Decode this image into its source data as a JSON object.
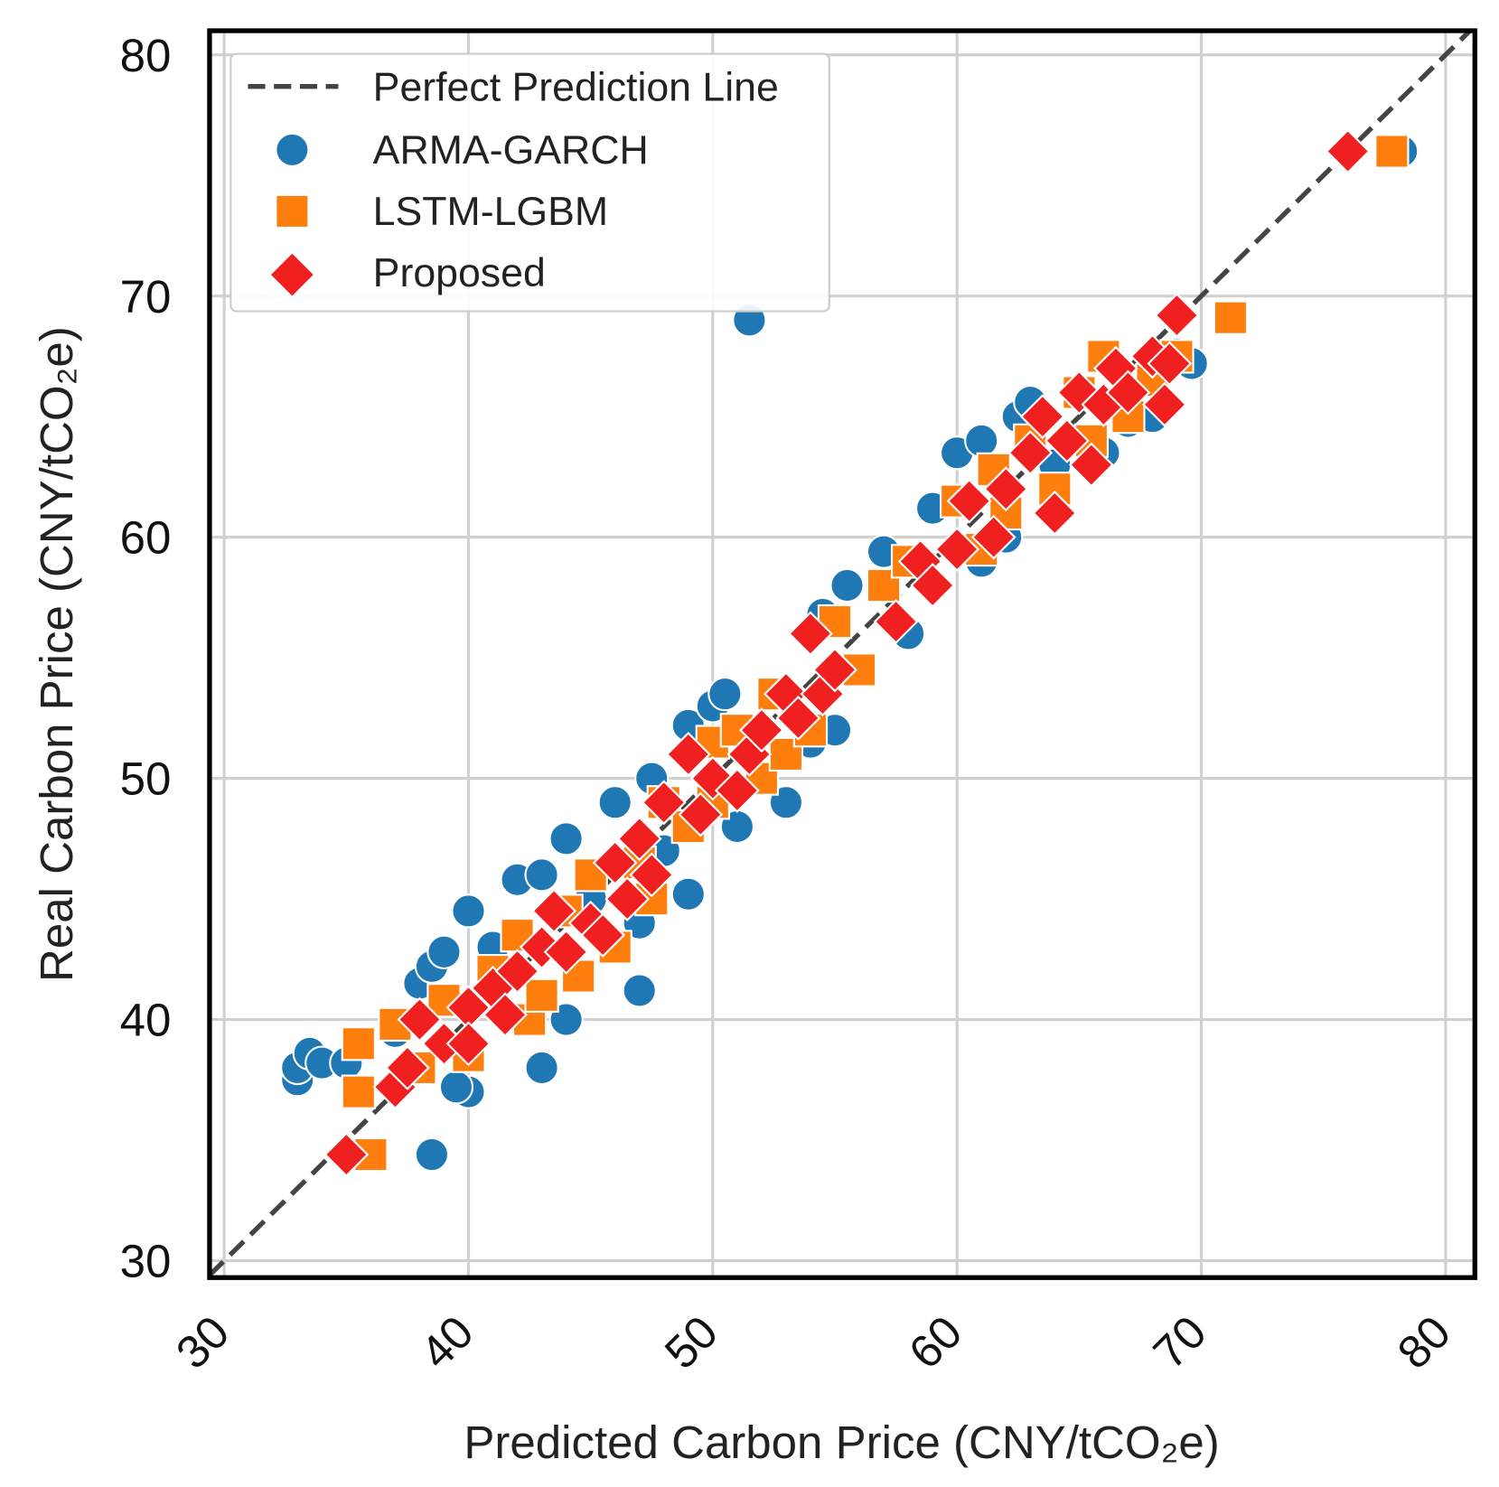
{
  "chart_data": {
    "type": "scatter",
    "xlabel": "Predicted Carbon Price (CNY/tCO₂e)",
    "ylabel": "Real Carbon Price (CNY/tCO₂e)",
    "xlim": [
      29.4,
      81.2
    ],
    "ylim": [
      29.3,
      81
    ],
    "xticks": [
      30,
      40,
      50,
      60,
      70,
      80
    ],
    "yticks": [
      30,
      40,
      50,
      60,
      70,
      80
    ],
    "grid": true,
    "legend_position": "top-left",
    "reference_line": {
      "name": "Perfect Prediction Line",
      "style": "dashed",
      "color": "#444444"
    },
    "series": [
      {
        "name": "ARMA-GARCH",
        "marker": "circle",
        "color": "#1f77b4",
        "points": [
          [
            33,
            37.5
          ],
          [
            33,
            38
          ],
          [
            33.5,
            38.6
          ],
          [
            34,
            38.2
          ],
          [
            35,
            38.2
          ],
          [
            38.5,
            34.4
          ],
          [
            43,
            38
          ],
          [
            47,
            41.2
          ],
          [
            51.5,
            69
          ],
          [
            78.2,
            76
          ],
          [
            37,
            39.5
          ],
          [
            38,
            41.5
          ],
          [
            38.5,
            42.2
          ],
          [
            39,
            42.8
          ],
          [
            40,
            44.5
          ],
          [
            40,
            37
          ],
          [
            39.5,
            37.2
          ],
          [
            41,
            43
          ],
          [
            42,
            45.8
          ],
          [
            43,
            46
          ],
          [
            44,
            47.5
          ],
          [
            44,
            40
          ],
          [
            45,
            45
          ],
          [
            46,
            49
          ],
          [
            47,
            44
          ],
          [
            47.5,
            50
          ],
          [
            48,
            47
          ],
          [
            49,
            45.2
          ],
          [
            49,
            52.2
          ],
          [
            50,
            53
          ],
          [
            50.5,
            53.5
          ],
          [
            51,
            48
          ],
          [
            52,
            52
          ],
          [
            53,
            49
          ],
          [
            54,
            51.5
          ],
          [
            54.5,
            56.8
          ],
          [
            55,
            52
          ],
          [
            55.5,
            58
          ],
          [
            56,
            54.5
          ],
          [
            57,
            59.4
          ],
          [
            58,
            56
          ],
          [
            59,
            61.2
          ],
          [
            60,
            63.5
          ],
          [
            61,
            59
          ],
          [
            61,
            64
          ],
          [
            62,
            60
          ],
          [
            62.5,
            65
          ],
          [
            63,
            65.6
          ],
          [
            64,
            63
          ],
          [
            65,
            66
          ],
          [
            66,
            63.5
          ],
          [
            67,
            64.8
          ],
          [
            68,
            65
          ],
          [
            69,
            67.6
          ],
          [
            69.6,
            67.2
          ]
        ]
      },
      {
        "name": "LSTM-LGBM",
        "marker": "square",
        "color": "#ff7f0e",
        "points": [
          [
            36,
            34.4
          ],
          [
            71.2,
            69.1
          ],
          [
            77.8,
            76
          ],
          [
            35.5,
            39
          ],
          [
            35.5,
            37
          ],
          [
            37,
            39.8
          ],
          [
            38,
            38
          ],
          [
            39,
            40.8
          ],
          [
            40,
            38.5
          ],
          [
            41,
            42
          ],
          [
            42,
            43.5
          ],
          [
            42.5,
            40
          ],
          [
            43,
            41
          ],
          [
            44,
            44.5
          ],
          [
            44.5,
            41.8
          ],
          [
            45,
            46
          ],
          [
            46,
            43
          ],
          [
            47,
            46.5
          ],
          [
            47.5,
            45
          ],
          [
            48,
            49
          ],
          [
            49,
            48
          ],
          [
            50,
            51.5
          ],
          [
            50,
            49
          ],
          [
            51,
            52
          ],
          [
            52,
            50
          ],
          [
            52.5,
            53.5
          ],
          [
            53,
            51
          ],
          [
            54,
            52
          ],
          [
            55,
            56.5
          ],
          [
            56,
            54.5
          ],
          [
            57,
            58
          ],
          [
            58,
            59
          ],
          [
            60,
            61.5
          ],
          [
            61,
            59.5
          ],
          [
            61.5,
            62.8
          ],
          [
            62,
            61
          ],
          [
            63,
            64
          ],
          [
            64,
            62
          ],
          [
            65,
            66
          ],
          [
            65.5,
            64
          ],
          [
            66,
            67.5
          ],
          [
            67,
            65
          ],
          [
            68,
            66.5
          ],
          [
            69,
            67.5
          ]
        ]
      },
      {
        "name": "Proposed",
        "marker": "diamond",
        "color": "#f02020",
        "points": [
          [
            35,
            34.4
          ],
          [
            76,
            76
          ],
          [
            69,
            69.2
          ],
          [
            37,
            37.2
          ],
          [
            37.5,
            38
          ],
          [
            38,
            40
          ],
          [
            39,
            39
          ],
          [
            40,
            40.5
          ],
          [
            40,
            39
          ],
          [
            41,
            41.3
          ],
          [
            41.5,
            40.2
          ],
          [
            42,
            42
          ],
          [
            43,
            43
          ],
          [
            43.5,
            44.5
          ],
          [
            44,
            42.8
          ],
          [
            45,
            44
          ],
          [
            45.5,
            43.5
          ],
          [
            46,
            46.5
          ],
          [
            46.5,
            45
          ],
          [
            47,
            47.5
          ],
          [
            47.5,
            46
          ],
          [
            48,
            49
          ],
          [
            49,
            51
          ],
          [
            49.5,
            48.5
          ],
          [
            50,
            50
          ],
          [
            51,
            49.5
          ],
          [
            51.5,
            51
          ],
          [
            52,
            52
          ],
          [
            53,
            53.5
          ],
          [
            53.5,
            52.5
          ],
          [
            54,
            56
          ],
          [
            54.5,
            53.5
          ],
          [
            55,
            54.5
          ],
          [
            57.5,
            56.5
          ],
          [
            58.5,
            59
          ],
          [
            59,
            58
          ],
          [
            60,
            59.5
          ],
          [
            60.5,
            61.5
          ],
          [
            61.5,
            60
          ],
          [
            62,
            62
          ],
          [
            63,
            63.5
          ],
          [
            63.5,
            65
          ],
          [
            64,
            61
          ],
          [
            64.5,
            64
          ],
          [
            65,
            66
          ],
          [
            65.5,
            63
          ],
          [
            66,
            65.5
          ],
          [
            66.5,
            67
          ],
          [
            67,
            66
          ],
          [
            68,
            67.5
          ],
          [
            68.5,
            65.5
          ],
          [
            68.7,
            67.2
          ]
        ]
      }
    ]
  }
}
